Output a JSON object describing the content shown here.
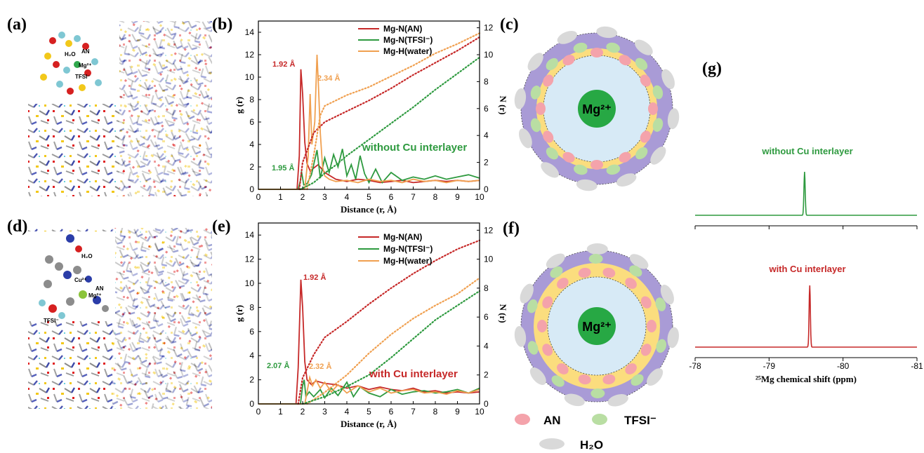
{
  "panel_labels": {
    "a": "(a)",
    "b": "(b)",
    "c": "(c)",
    "d": "(d)",
    "e": "(e)",
    "f": "(f)",
    "g": "(g)"
  },
  "inset_a": {
    "h2o": "H₂O",
    "an": "AN",
    "mg": "Mg²⁺",
    "tfsi": "TFSI⁻"
  },
  "inset_d": {
    "h2o": "H₂O",
    "cu": "Cu²⁺",
    "an": "AN",
    "mg": "Mg²⁺",
    "tfsi": "TFSI⁻"
  },
  "solvation": {
    "center": "Mg²⁺",
    "key_an": "AN",
    "key_tfsi": "TFSI⁻",
    "key_h2o": "H₂O"
  },
  "colors": {
    "mgn_an": "#c62828",
    "mgn_tfsi": "#2e9a3f",
    "mgh_water": "#f0a050",
    "an": "#f4a3ab",
    "tfsi": "#b9dea3",
    "h2o": "#d9d9d9",
    "shell_outer": "#a99bd6",
    "shell_mid": "#fbdd7e",
    "shell_inner": "#d7eaf6",
    "mg": "#27a844"
  },
  "chart_data": [
    {
      "id": "b",
      "type": "line",
      "xlabel": "Distance (r, Å)",
      "ylabel": "g (r)",
      "y2label": "N (r)",
      "xlim": [
        0,
        10
      ],
      "ylim": [
        0,
        15
      ],
      "y2lim": [
        0,
        12.5
      ],
      "xticks": [
        0,
        1,
        2,
        3,
        4,
        5,
        6,
        7,
        8,
        9,
        10
      ],
      "yticks": [
        0,
        2,
        4,
        6,
        8,
        10,
        12,
        14
      ],
      "y2ticks": [
        0,
        2,
        4,
        6,
        8,
        10,
        12
      ],
      "legend": [
        "Mg-N(AN)",
        "Mg-N(TFSI⁻)",
        "Mg-H(water)"
      ],
      "series": [
        {
          "name": "Mg-N(AN)",
          "color": "#c62828",
          "x": [
            0,
            1.75,
            1.85,
            1.92,
            2.0,
            2.1,
            2.2,
            2.35,
            2.5,
            2.7,
            3,
            3.5,
            4,
            4.5,
            5,
            5.5,
            6,
            6.5,
            7,
            7.5,
            8,
            8.5,
            9,
            9.5,
            10
          ],
          "y": [
            0,
            0,
            3,
            10.7,
            8.5,
            4.2,
            2.3,
            1.6,
            1.9,
            2.2,
            1.5,
            0.9,
            0.7,
            0.9,
            0.8,
            0.6,
            0.7,
            0.8,
            0.6,
            0.7,
            0.8,
            0.7,
            0.8,
            0.7,
            0.8
          ]
        },
        {
          "name": "Mg-N(TFSI⁻)",
          "color": "#2e9a3f",
          "x": [
            0,
            1.8,
            1.9,
            1.95,
            2.05,
            2.2,
            2.4,
            2.5,
            2.65,
            2.8,
            3,
            3.2,
            3.4,
            3.6,
            3.8,
            4,
            4.2,
            4.4,
            4.6,
            4.8,
            5,
            5.3,
            5.6,
            6,
            6.5,
            7,
            7.5,
            8,
            8.5,
            9,
            9.5,
            10
          ],
          "y": [
            0,
            0,
            0.8,
            1.6,
            0.4,
            0.5,
            1.3,
            2.2,
            3.5,
            1.0,
            2.8,
            1.5,
            3.1,
            2.0,
            3.6,
            1.2,
            2.2,
            0.9,
            3.0,
            1.4,
            0.6,
            1.8,
            0.6,
            1.5,
            0.8,
            1.1,
            0.9,
            1.2,
            0.9,
            1.1,
            1.3,
            1.0
          ]
        },
        {
          "name": "Mg-H(water)",
          "color": "#f0a050",
          "x": [
            0,
            2.1,
            2.25,
            2.34,
            2.42,
            2.55,
            2.65,
            2.72,
            2.8,
            2.9,
            3,
            3.2,
            3.5,
            4,
            4.5,
            5,
            5.5,
            6,
            6.5,
            7,
            7.5,
            8,
            8.5,
            9,
            9.5,
            10
          ],
          "y": [
            0,
            0,
            3,
            8.5,
            4,
            6,
            12,
            9,
            5,
            2,
            1.2,
            0.9,
            0.7,
            0.8,
            0.6,
            0.9,
            0.7,
            0.8,
            0.6,
            0.9,
            0.7,
            0.8,
            0.6,
            0.8,
            0.7,
            0.8
          ]
        },
        {
          "name": "N-AN",
          "color": "#c62828",
          "dotted": true,
          "axis": "right",
          "x": [
            1.85,
            2,
            2.5,
            3,
            4,
            5,
            6,
            7,
            8,
            9,
            10
          ],
          "y": [
            0,
            2.0,
            4.2,
            5.0,
            5.8,
            6.6,
            7.5,
            8.5,
            9.4,
            10.3,
            11.3
          ]
        },
        {
          "name": "N-water",
          "color": "#f0a050",
          "dotted": true,
          "axis": "right",
          "x": [
            2.2,
            2.5,
            2.8,
            3,
            3.5,
            4,
            5,
            6,
            7,
            8,
            9,
            10
          ],
          "y": [
            0,
            2.5,
            5.5,
            6.2,
            6.6,
            7.0,
            7.6,
            8.4,
            9.2,
            10.1,
            10.8,
            11.6
          ]
        },
        {
          "name": "N-TFSI",
          "color": "#2e9a3f",
          "dotted": true,
          "axis": "right",
          "x": [
            1.9,
            2.5,
            3,
            3.5,
            4,
            5,
            6,
            7,
            8,
            9,
            10
          ],
          "y": [
            0,
            0.5,
            1.2,
            1.8,
            2.5,
            3.7,
            4.9,
            6.1,
            7.4,
            8.6,
            9.8
          ]
        }
      ],
      "annotations": [
        {
          "text": "1.92 Å",
          "color": "#c62828"
        },
        {
          "text": "2.34 Å",
          "color": "#f0a050"
        },
        {
          "text": "1.95 Å",
          "color": "#2e9a3f"
        },
        {
          "text": "without Cu interlayer",
          "color": "#2e9a3f"
        }
      ]
    },
    {
      "id": "e",
      "type": "line",
      "xlabel": "Distance (r, Å)",
      "ylabel": "g (r)",
      "y2label": "N (r)",
      "xlim": [
        0,
        10
      ],
      "ylim": [
        0,
        15
      ],
      "y2lim": [
        0,
        12.5
      ],
      "xticks": [
        0,
        1,
        2,
        3,
        4,
        5,
        6,
        7,
        8,
        9,
        10
      ],
      "yticks": [
        0,
        2,
        4,
        6,
        8,
        10,
        12,
        14
      ],
      "y2ticks": [
        0,
        2,
        4,
        6,
        8,
        10,
        12
      ],
      "legend": [
        "Mg-N(AN)",
        "Mg-N(TFSI⁻)",
        "Mg-H(water)"
      ],
      "series": [
        {
          "name": "Mg-N(AN)",
          "color": "#c62828",
          "x": [
            0,
            1.7,
            1.8,
            1.92,
            2.0,
            2.1,
            2.2,
            2.4,
            2.6,
            3,
            3.5,
            4,
            4.5,
            5,
            5.5,
            6,
            6.5,
            7,
            7.5,
            8,
            8.5,
            9,
            9.5,
            10
          ],
          "y": [
            0,
            0,
            3,
            10.3,
            8.0,
            3.5,
            2.0,
            1.6,
            1.9,
            1.7,
            1.6,
            1.3,
            1.5,
            1.2,
            1.4,
            1.2,
            1.1,
            1.3,
            1.0,
            1.1,
            0.9,
            1.0,
            0.9,
            1.0
          ]
        },
        {
          "name": "Mg-N(TFSI⁻)",
          "color": "#2e9a3f",
          "x": [
            0,
            1.9,
            2.0,
            2.07,
            2.15,
            2.3,
            2.5,
            2.8,
            3,
            3.3,
            3.6,
            4,
            4.3,
            4.6,
            5,
            5.5,
            6,
            6.5,
            7,
            7.5,
            8,
            8.5,
            9,
            9.5,
            10
          ],
          "y": [
            0,
            0,
            1.5,
            2.0,
            0.6,
            1.0,
            0.6,
            1.2,
            0.5,
            1.3,
            0.7,
            1.8,
            0.6,
            1.4,
            0.9,
            0.6,
            1.2,
            0.8,
            1.0,
            1.1,
            0.9,
            1.0,
            1.2,
            0.9,
            1.3
          ]
        },
        {
          "name": "Mg-H(water)",
          "color": "#f0a050",
          "x": [
            0,
            2.1,
            2.2,
            2.32,
            2.45,
            2.6,
            2.8,
            3,
            3.3,
            3.6,
            4,
            4.5,
            5,
            5.5,
            6,
            6.5,
            7,
            7.5,
            8,
            8.5,
            9,
            9.5,
            10
          ],
          "y": [
            0,
            0,
            1.0,
            2.2,
            1.5,
            2.0,
            1.3,
            1.8,
            1.0,
            1.6,
            0.9,
            1.5,
            1.0,
            1.3,
            0.9,
            1.1,
            1.2,
            0.9,
            1.0,
            0.8,
            1.1,
            0.9,
            1.2
          ]
        },
        {
          "name": "N-AN",
          "color": "#c62828",
          "dotted": true,
          "axis": "right",
          "x": [
            1.8,
            2,
            2.5,
            3,
            4,
            5,
            6,
            7,
            8,
            9,
            10
          ],
          "y": [
            0,
            1.8,
            3.4,
            4.6,
            5.7,
            6.9,
            8.0,
            9.0,
            9.9,
            10.7,
            11.3
          ]
        },
        {
          "name": "N-water",
          "color": "#f0a050",
          "dotted": true,
          "axis": "right",
          "x": [
            2.2,
            3,
            4,
            5,
            6,
            7,
            8,
            9,
            10
          ],
          "y": [
            0,
            0.8,
            2.0,
            3.5,
            4.8,
            5.9,
            6.8,
            7.6,
            8.7
          ]
        },
        {
          "name": "N-TFSI",
          "color": "#2e9a3f",
          "dotted": true,
          "axis": "right",
          "x": [
            2.0,
            3,
            4,
            5,
            6,
            7,
            8,
            9,
            10
          ],
          "y": [
            0,
            0.5,
            1.2,
            2.0,
            3.2,
            4.5,
            5.8,
            6.8,
            7.8
          ]
        }
      ],
      "annotations": [
        {
          "text": "1.92 Å",
          "color": "#c62828"
        },
        {
          "text": "2.07 Å",
          "color": "#2e9a3f"
        },
        {
          "text": "2.32 Å",
          "color": "#f0a050"
        },
        {
          "text": "with Cu interlayer",
          "color": "#c62828"
        }
      ]
    },
    {
      "id": "g",
      "type": "line",
      "xlabel": "²⁵Mg chemical shift (ppm)",
      "xlim": [
        -78,
        -81
      ],
      "xticks": [
        -78,
        -79,
        -80,
        -81
      ],
      "series": [
        {
          "name": "without Cu interlayer",
          "color": "#2e9a3f",
          "peak_ppm": -79.48
        },
        {
          "name": "with Cu interlayer",
          "color": "#c62828",
          "peak_ppm": -79.55
        }
      ]
    }
  ]
}
